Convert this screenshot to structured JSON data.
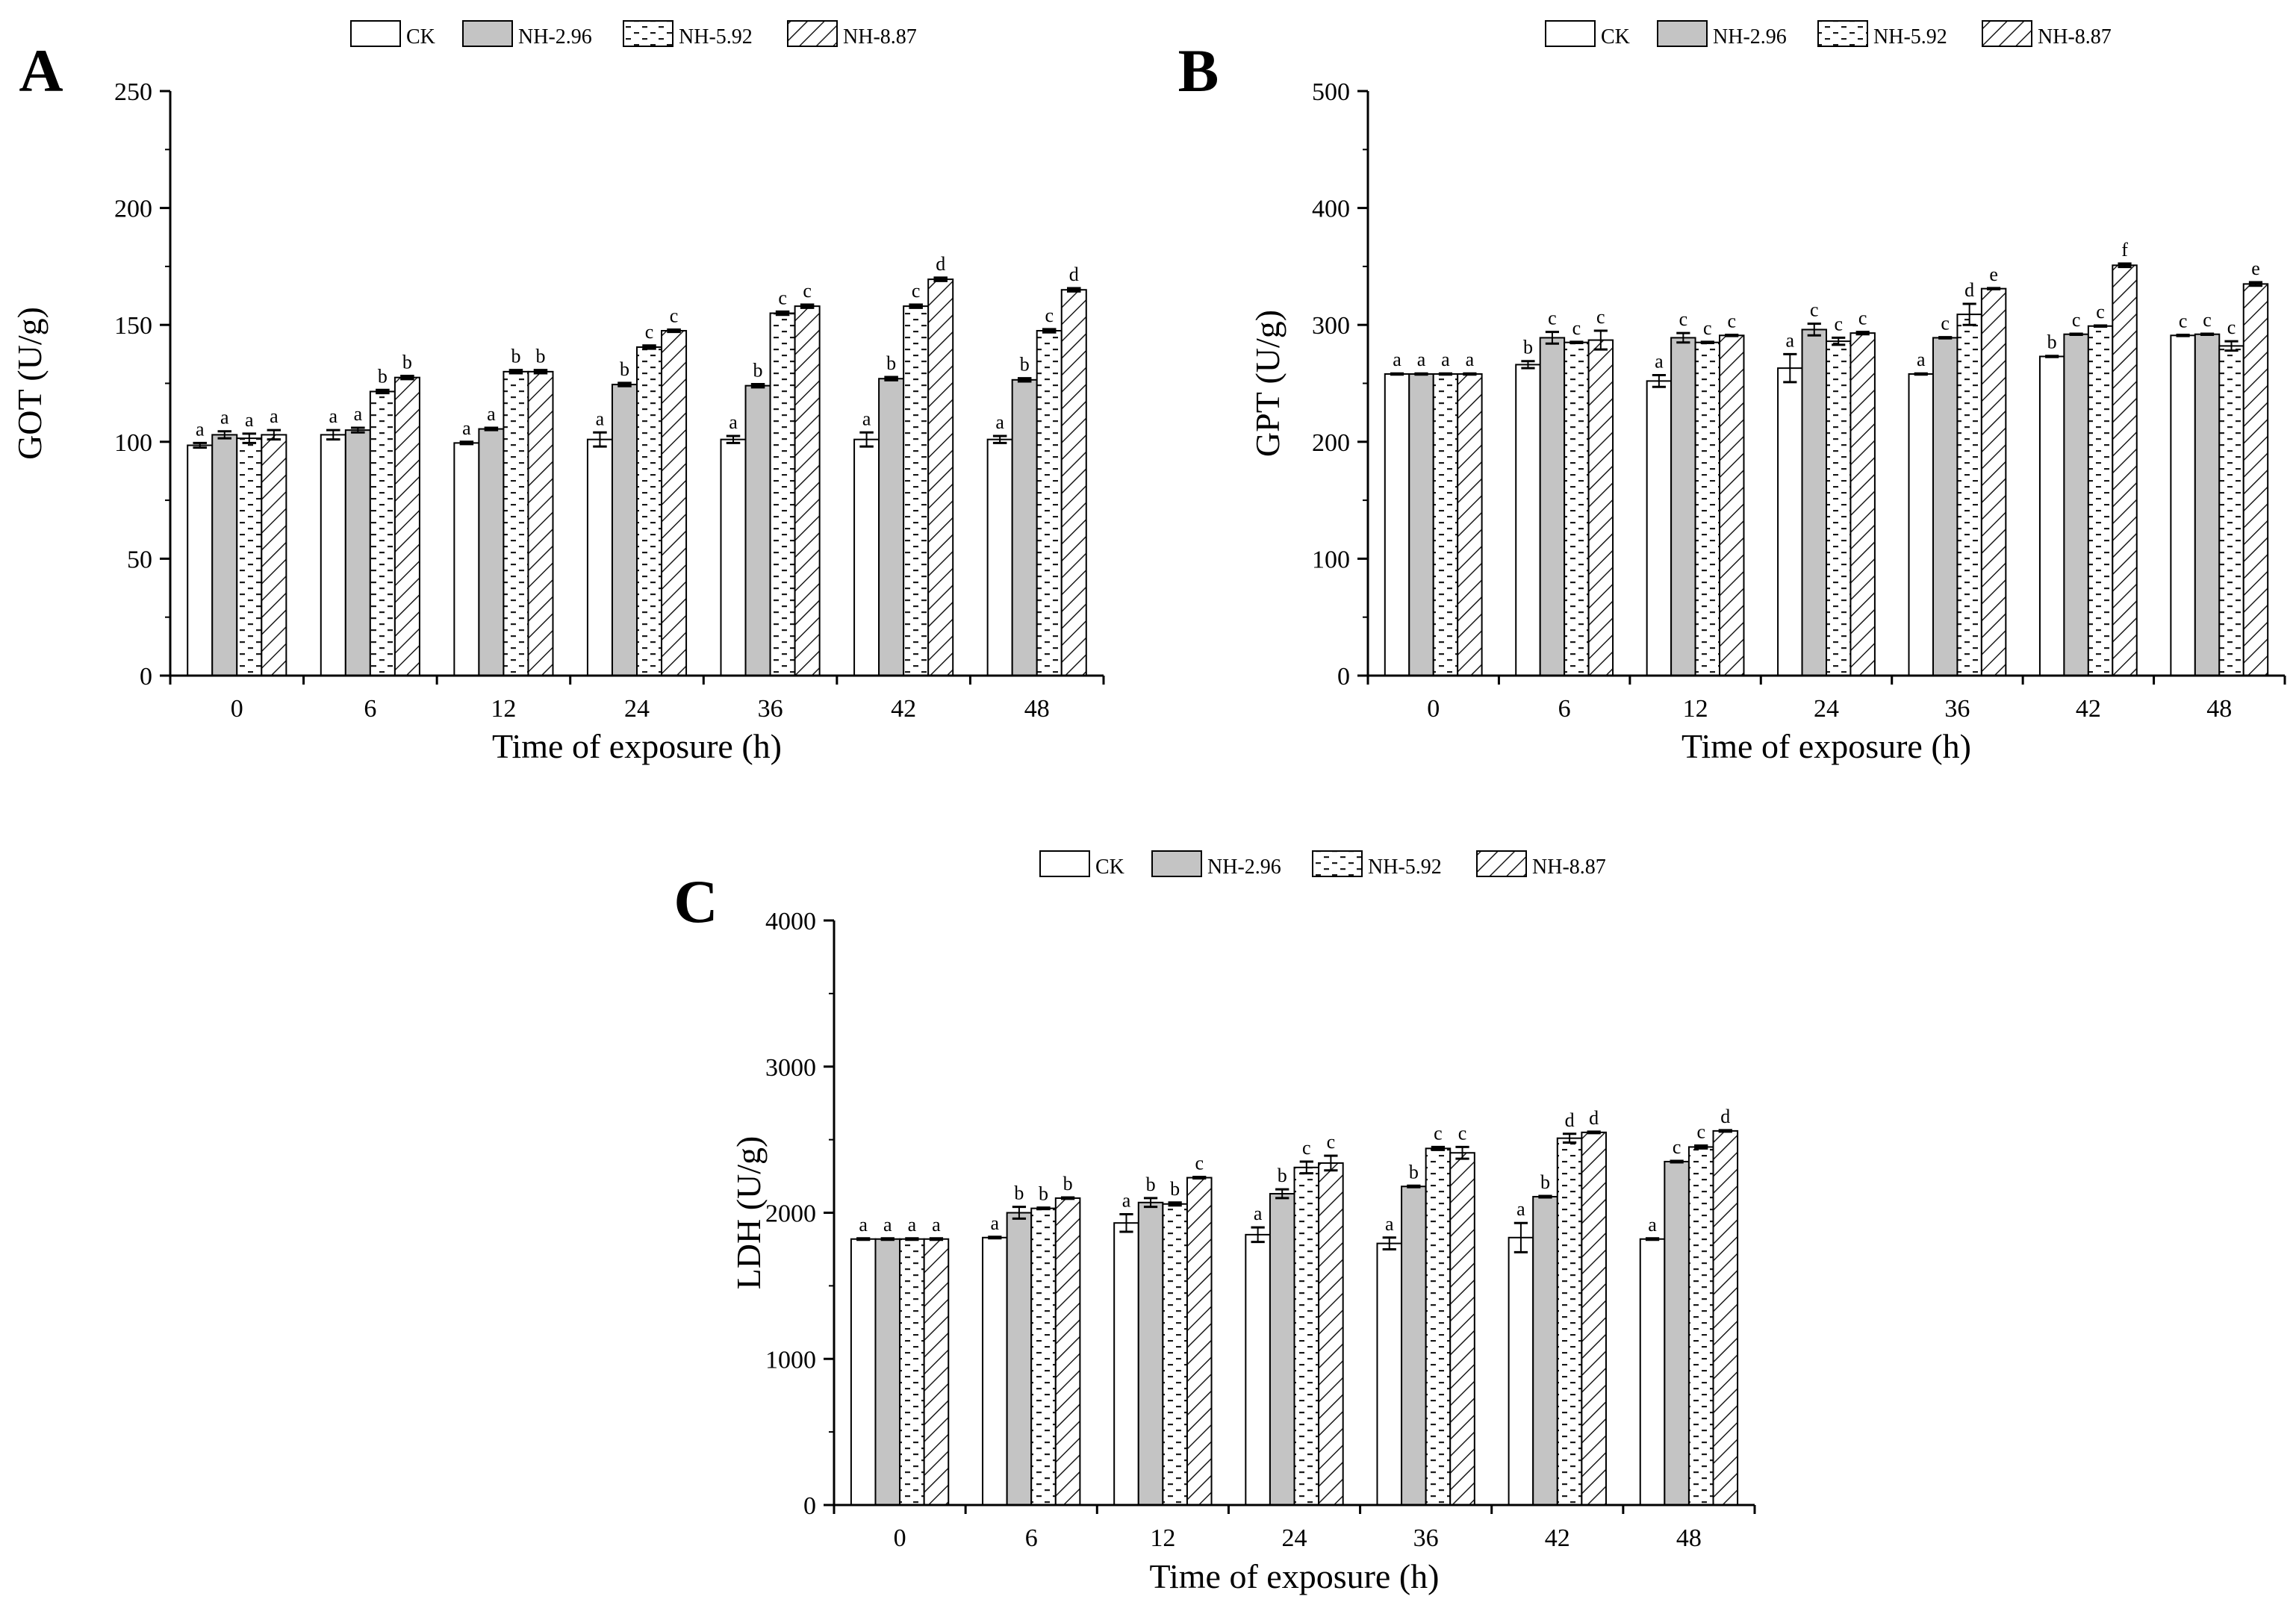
{
  "figure": {
    "legend_labels": [
      "CK",
      "NH-2.96",
      "NH-5.92",
      "NH-8.87"
    ]
  },
  "chart_data": [
    {
      "panel_label": "A",
      "type": "bar",
      "xlabel": "Time of exposure (h)",
      "ylabel": "GOT (U/g)",
      "ylim": [
        0,
        250
      ],
      "yticks": [
        0,
        50,
        100,
        150,
        200,
        250
      ],
      "categories": [
        "0",
        "6",
        "12",
        "24",
        "36",
        "42",
        "48"
      ],
      "legend": "top-center",
      "series": [
        {
          "name": "CK",
          "values": [
            98.5,
            103,
            99.5,
            101,
            101,
            101,
            101
          ],
          "errors": [
            1,
            2,
            0.5,
            3,
            1.5,
            3,
            1.5
          ],
          "letters": [
            "a",
            "a",
            "a",
            "a",
            "a",
            "a",
            "a"
          ]
        },
        {
          "name": "NH-2.96",
          "values": [
            103,
            105,
            105.5,
            124.5,
            124,
            127,
            126.5
          ],
          "errors": [
            1.5,
            1,
            0.5,
            0.7,
            0.7,
            0.7,
            0.7
          ],
          "letters": [
            "a",
            "a",
            "a",
            "b",
            "b",
            "b",
            "b"
          ]
        },
        {
          "name": "NH-5.92",
          "values": [
            101.5,
            121.5,
            130,
            140.5,
            155,
            158,
            147.5
          ],
          "errors": [
            2,
            0.7,
            0.7,
            0.7,
            0.7,
            0.7,
            0.7
          ],
          "letters": [
            "a",
            "b",
            "b",
            "c",
            "c",
            "c",
            "c"
          ]
        },
        {
          "name": "NH-8.87",
          "values": [
            103,
            127.5,
            130,
            147.5,
            158,
            169.5,
            165
          ],
          "errors": [
            2,
            0.7,
            0.7,
            0.5,
            0.7,
            0.7,
            0.7
          ],
          "letters": [
            "a",
            "b",
            "b",
            "c",
            "c",
            "d",
            "d"
          ]
        }
      ]
    },
    {
      "panel_label": "B",
      "type": "bar",
      "xlabel": "Time of exposure (h)",
      "ylabel": "GPT (U/g)",
      "ylim": [
        0,
        500
      ],
      "yticks": [
        0,
        100,
        200,
        300,
        400,
        500
      ],
      "categories": [
        "0",
        "6",
        "12",
        "24",
        "36",
        "42",
        "48"
      ],
      "legend": "top-center",
      "series": [
        {
          "name": "CK",
          "values": [
            258,
            266,
            252,
            263,
            258,
            273,
            291
          ],
          "errors": [
            0.5,
            3,
            5,
            12,
            0.5,
            0.5,
            0.5
          ],
          "letters": [
            "a",
            "b",
            "a",
            "a",
            "a",
            "b",
            "c"
          ]
        },
        {
          "name": "NH-2.96",
          "values": [
            258,
            289,
            289,
            296,
            289,
            292,
            292
          ],
          "errors": [
            0.5,
            5,
            4,
            5,
            0.5,
            0.5,
            0.5
          ],
          "letters": [
            "a",
            "c",
            "c",
            "c",
            "c",
            "c",
            "c"
          ]
        },
        {
          "name": "NH-5.92",
          "values": [
            258,
            285,
            285,
            286,
            309,
            299,
            282
          ],
          "errors": [
            0.5,
            0.5,
            0.5,
            3,
            9,
            0.5,
            4
          ],
          "letters": [
            "a",
            "c",
            "c",
            "c",
            "d",
            "c",
            "c"
          ]
        },
        {
          "name": "NH-8.87",
          "values": [
            258,
            287,
            291,
            293,
            331,
            351,
            335
          ],
          "errors": [
            0.5,
            8,
            0.5,
            1,
            0.5,
            1.5,
            1.5
          ],
          "letters": [
            "a",
            "c",
            "c",
            "c",
            "e",
            "f",
            "e"
          ]
        }
      ]
    },
    {
      "panel_label": "C",
      "type": "bar",
      "xlabel": "Time of exposure (h)",
      "ylabel": "LDH (U/g)",
      "ylim": [
        0,
        4000
      ],
      "yticks": [
        0,
        1000,
        2000,
        3000,
        4000
      ],
      "categories": [
        "0",
        "6",
        "12",
        "24",
        "36",
        "42",
        "48"
      ],
      "legend": "top-center",
      "series": [
        {
          "name": "CK",
          "values": [
            1820,
            1830,
            1930,
            1850,
            1790,
            1830,
            1820
          ],
          "errors": [
            5,
            5,
            60,
            50,
            40,
            100,
            5
          ],
          "letters": [
            "a",
            "a",
            "a",
            "a",
            "a",
            "a",
            "a"
          ]
        },
        {
          "name": "NH-2.96",
          "values": [
            1820,
            2000,
            2070,
            2130,
            2180,
            2110,
            2350
          ],
          "errors": [
            5,
            40,
            30,
            30,
            5,
            5,
            5
          ],
          "letters": [
            "a",
            "b",
            "b",
            "b",
            "b",
            "b",
            "c"
          ]
        },
        {
          "name": "NH-5.92",
          "values": [
            1820,
            2030,
            2060,
            2310,
            2440,
            2510,
            2450
          ],
          "errors": [
            5,
            5,
            10,
            40,
            10,
            30,
            10
          ],
          "letters": [
            "a",
            "b",
            "b",
            "c",
            "c",
            "d",
            "c"
          ]
        },
        {
          "name": "NH-8.87",
          "values": [
            1820,
            2100,
            2240,
            2340,
            2410,
            2550,
            2560
          ],
          "errors": [
            5,
            5,
            5,
            50,
            40,
            5,
            5
          ],
          "letters": [
            "a",
            "b",
            "c",
            "c",
            "c",
            "d",
            "d"
          ]
        }
      ]
    }
  ]
}
